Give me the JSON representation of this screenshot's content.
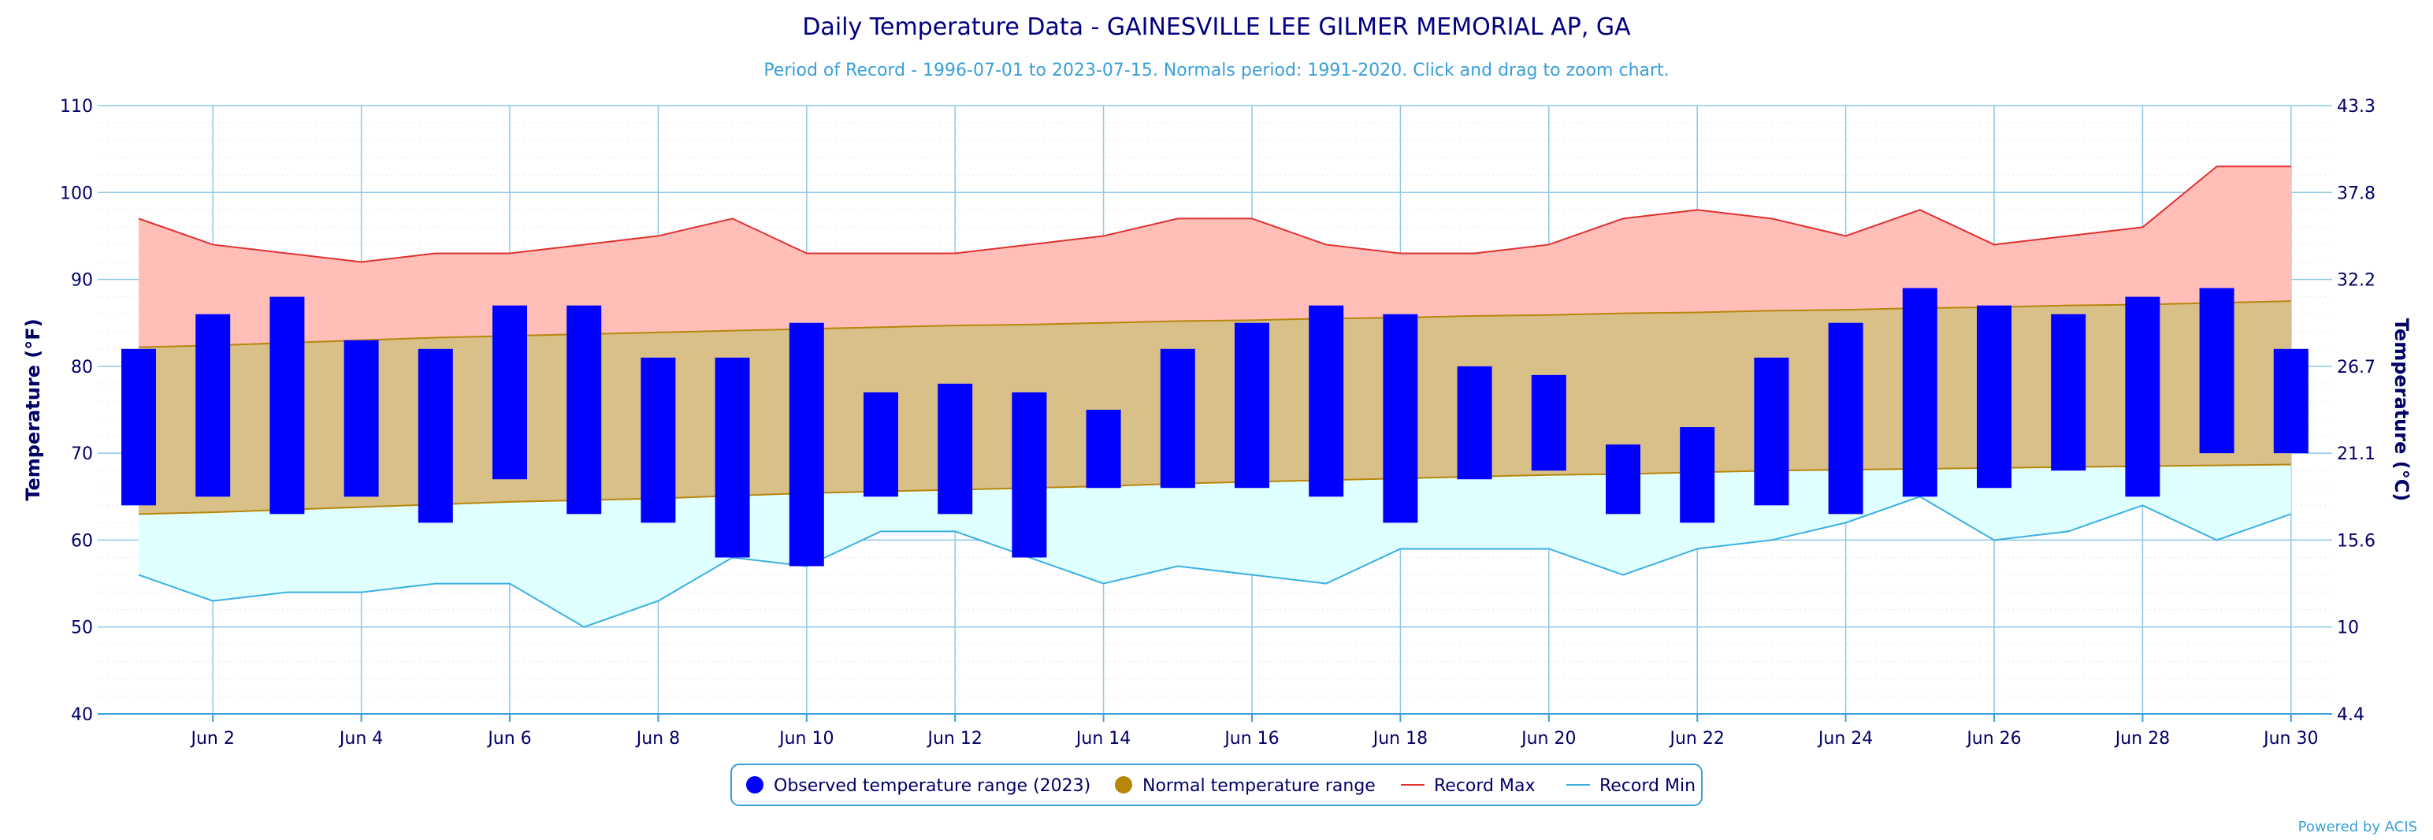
{
  "chart_data": {
    "type": "bar",
    "title": "Daily Temperature Data - GAINESVILLE LEE GILMER MEMORIAL AP, GA",
    "subtitle": "Period of Record - 1996-07-01 to 2023-07-15. Normals period: 1991-2020. Click and drag to zoom chart.",
    "ylabel": "Temperature (°F)",
    "ylabel_right": "Temperature (°C)",
    "ylim": [
      40,
      110
    ],
    "yticks": [
      40,
      50,
      60,
      70,
      80,
      90,
      100,
      110
    ],
    "yticks_right": [
      "4.4",
      "10",
      "15.6",
      "21.1",
      "26.7",
      "32.2",
      "37.8",
      "43.3"
    ],
    "days": [
      1,
      2,
      3,
      4,
      5,
      6,
      7,
      8,
      9,
      10,
      11,
      12,
      13,
      14,
      15,
      16,
      17,
      18,
      19,
      20,
      21,
      22,
      23,
      24,
      25,
      26,
      27,
      28,
      29,
      30
    ],
    "xtick_days": [
      2,
      4,
      6,
      8,
      10,
      12,
      14,
      16,
      18,
      20,
      22,
      24,
      26,
      28,
      30
    ],
    "xtick_labels": [
      "Jun 2",
      "Jun 4",
      "Jun 6",
      "Jun 8",
      "Jun 10",
      "Jun 12",
      "Jun 14",
      "Jun 16",
      "Jun 18",
      "Jun 20",
      "Jun 22",
      "Jun 24",
      "Jun 26",
      "Jun 28",
      "Jun 30"
    ],
    "grid": true,
    "legend_position": "bottom-center",
    "series": [
      {
        "name": "Observed temperature range (2023)",
        "type": "range-bar",
        "color": "#0000ff",
        "low": [
          64,
          65,
          63,
          65,
          62,
          67,
          63,
          62,
          58,
          57,
          65,
          63,
          58,
          66,
          66,
          66,
          65,
          62,
          67,
          68,
          63,
          62,
          64,
          63,
          65,
          66,
          68,
          65,
          70,
          70
        ],
        "high": [
          82,
          86,
          88,
          83,
          82,
          87,
          87,
          81,
          81,
          85,
          77,
          78,
          77,
          75,
          82,
          85,
          87,
          86,
          80,
          79,
          71,
          73,
          81,
          85,
          89,
          87,
          86,
          88,
          89,
          82
        ]
      },
      {
        "name": "Normal temperature range",
        "type": "area-range",
        "color": "#b8860b",
        "fill": "#d9c089",
        "low": [
          63,
          63.2,
          63.5,
          63.8,
          64.1,
          64.4,
          64.6,
          64.8,
          65.1,
          65.4,
          65.6,
          65.8,
          66,
          66.2,
          66.5,
          66.7,
          66.9,
          67.1,
          67.3,
          67.5,
          67.6,
          67.8,
          68,
          68.1,
          68.2,
          68.3,
          68.4,
          68.5,
          68.6,
          68.7
        ],
        "high": [
          82.2,
          82.4,
          82.7,
          83,
          83.3,
          83.5,
          83.7,
          83.9,
          84.1,
          84.3,
          84.5,
          84.7,
          84.8,
          85,
          85.2,
          85.3,
          85.5,
          85.6,
          85.8,
          85.9,
          86.1,
          86.2,
          86.4,
          86.5,
          86.7,
          86.8,
          87,
          87.1,
          87.3,
          87.5
        ]
      },
      {
        "name": "Record Max",
        "type": "line",
        "color": "#e03030",
        "fill": "#ffbfb8",
        "values": [
          97,
          94,
          93,
          92,
          93,
          93,
          94,
          95,
          97,
          93,
          93,
          93,
          94,
          95,
          97,
          97,
          94,
          93,
          93,
          94,
          97,
          98,
          97,
          95,
          98,
          94,
          95,
          96,
          103,
          103
        ]
      },
      {
        "name": "Record Min",
        "type": "line",
        "color": "#3ab0e0",
        "fill": "#e0ffff",
        "values": [
          56,
          53,
          54,
          54,
          55,
          55,
          50,
          53,
          58,
          57,
          61,
          61,
          58,
          55,
          57,
          56,
          55,
          59,
          59,
          59,
          56,
          59,
          60,
          62,
          65,
          60,
          61,
          64,
          60,
          63
        ]
      }
    ]
  },
  "credit": "Powered by ACIS"
}
